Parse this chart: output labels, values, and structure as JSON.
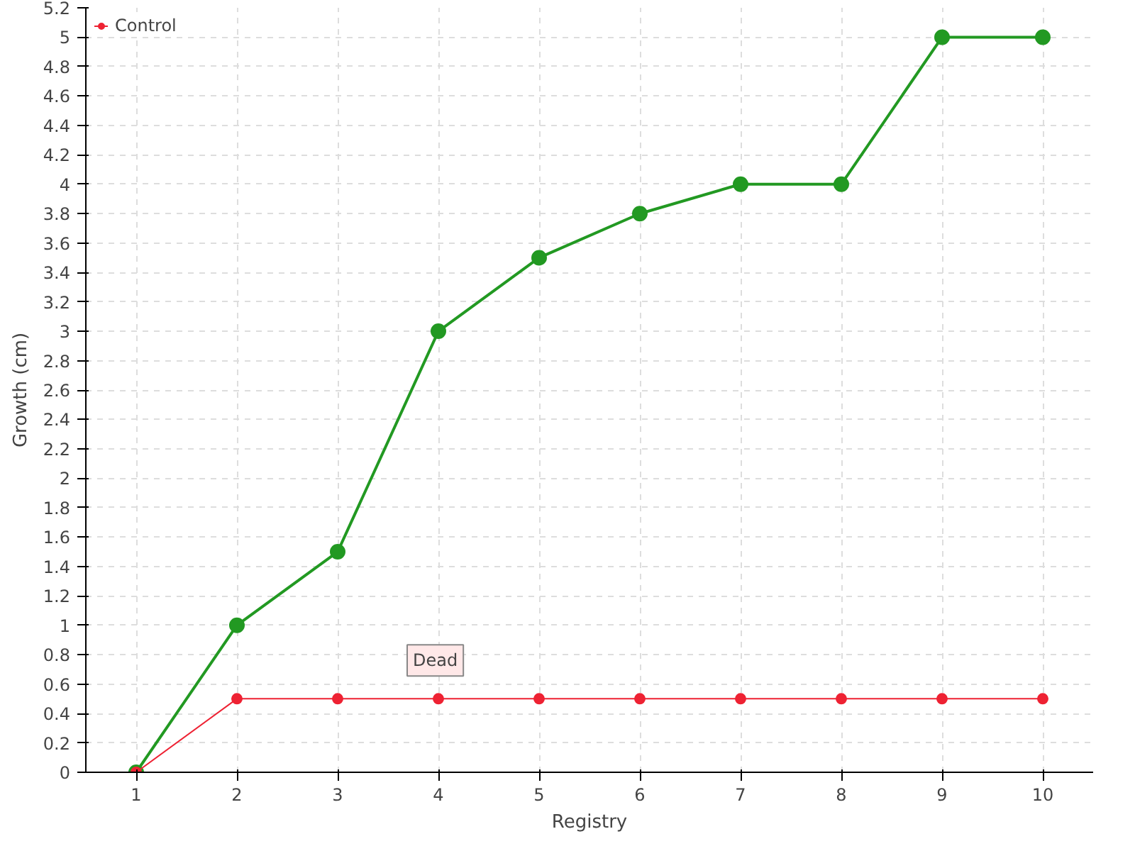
{
  "chart_data": {
    "type": "line",
    "xlabel": "Registry",
    "ylabel": "Growth (cm)",
    "x": [
      1,
      2,
      3,
      4,
      5,
      6,
      7,
      8,
      9,
      10
    ],
    "series": [
      {
        "color": "#229922",
        "values": [
          0,
          1,
          1.5,
          3,
          3.5,
          3.8,
          4,
          4,
          5,
          5
        ]
      },
      {
        "name": "Control",
        "color": "#ee2233",
        "values": [
          0,
          0.5,
          0.5,
          0.5,
          0.5,
          0.5,
          0.5,
          0.5,
          0.5,
          0.5
        ]
      }
    ],
    "annotations": [
      {
        "text": "Dead",
        "x": 4,
        "y": 0.5
      }
    ],
    "xlim": [
      0.5,
      10.5
    ],
    "xticks": [
      1,
      2,
      3,
      4,
      5,
      6,
      7,
      8,
      9,
      10
    ],
    "ylim": [
      0,
      5.2
    ],
    "yticks": [
      0,
      0.2,
      0.4,
      0.6,
      0.8,
      1,
      1.2,
      1.4,
      1.6,
      1.8,
      2,
      2.2,
      2.4,
      2.6,
      2.8,
      3,
      3.2,
      3.4,
      3.6,
      3.8,
      4,
      4.2,
      4.4,
      4.6,
      4.8,
      5,
      5.2
    ],
    "grid": true,
    "legend": "top left",
    "marker": "circle",
    "line_style": "solid"
  }
}
